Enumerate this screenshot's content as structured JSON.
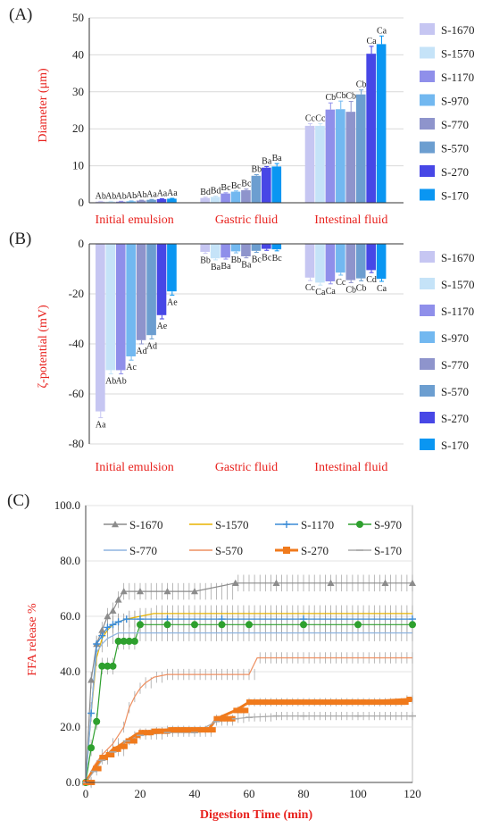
{
  "colors": {
    "S-1670": "#C6C6F2",
    "S-1570": "#C5E3F8",
    "S-1170": "#8F8FEA",
    "S-970": "#72B8F0",
    "S-770": "#8E94CC",
    "S-570": "#6C9ED0",
    "S-270": "#4747E6",
    "S-170": "#0A96F2",
    "axis_label": "#E8221E",
    "group_label": "#E8221E"
  },
  "chart_data": [
    {
      "type": "bar",
      "panel_label": "(A)",
      "ylabel": "Diameter (μm)",
      "ylim": [
        0,
        50
      ],
      "yticks": [
        "0",
        "10",
        "20",
        "30",
        "40",
        "50"
      ],
      "legend_position": "right",
      "groups": [
        "Initial emulsion",
        "Gastric fluid",
        "Intestinal fluid"
      ],
      "series": [
        {
          "name": "S-1670",
          "values": [
            0.3,
            1.3,
            20.8
          ],
          "errors": [
            0.1,
            0.2,
            0.6
          ],
          "labels": [
            "Ab",
            "Bd",
            "Cc"
          ]
        },
        {
          "name": "S-1570",
          "values": [
            0.3,
            1.6,
            20.8
          ],
          "errors": [
            0.1,
            0.2,
            0.6
          ],
          "labels": [
            "Ab",
            "Bd",
            "Cc"
          ]
        },
        {
          "name": "S-1170",
          "values": [
            0.3,
            2.5,
            25.2
          ],
          "errors": [
            0.1,
            0.2,
            1.8
          ],
          "labels": [
            "Ab",
            "Bc",
            "Cb"
          ]
        },
        {
          "name": "S-970",
          "values": [
            0.4,
            3.0,
            25.3
          ],
          "errors": [
            0.1,
            0.2,
            2.2
          ],
          "labels": [
            "Ab",
            "Bc",
            "Cb"
          ]
        },
        {
          "name": "S-770",
          "values": [
            0.6,
            3.4,
            24.6
          ],
          "errors": [
            0.1,
            0.3,
            2.8
          ],
          "labels": [
            "Ab",
            "Bc",
            "Cb"
          ]
        },
        {
          "name": "S-570",
          "values": [
            0.8,
            7.3,
            29.3
          ],
          "errors": [
            0.1,
            0.3,
            1.2
          ],
          "labels": [
            "Aa",
            "Bb",
            "Cb"
          ]
        },
        {
          "name": "S-270",
          "values": [
            1.0,
            9.5,
            40.3
          ],
          "errors": [
            0.1,
            0.3,
            2.0
          ],
          "labels": [
            "Aa",
            "Ba",
            "Ca"
          ]
        },
        {
          "name": "S-170",
          "values": [
            1.1,
            9.8,
            42.9
          ],
          "errors": [
            0.1,
            0.8,
            2.2
          ],
          "labels": [
            "Aa",
            "Ba",
            "Ca"
          ]
        }
      ]
    },
    {
      "type": "bar",
      "panel_label": "(B)",
      "ylabel": "ζ-potential (mV)",
      "ylim": [
        -80,
        0
      ],
      "yticks": [
        "0",
        "-20",
        "-40",
        "-60",
        "-80"
      ],
      "legend_position": "right",
      "groups": [
        "Initial emulsion",
        "Gastric fluid",
        "Intestinal fluid"
      ],
      "series": [
        {
          "name": "S-1670",
          "values": [
            -67,
            -3.2,
            -13.5
          ],
          "errors": [
            2.5,
            0.6,
            1.2
          ],
          "labels": [
            "Aa",
            "Bb",
            "Cc"
          ]
        },
        {
          "name": "S-1570",
          "values": [
            -50.5,
            -5.8,
            -15.5
          ],
          "errors": [
            1.5,
            0.6,
            1.0
          ],
          "labels": [
            "Ab",
            "Ba",
            "Ca"
          ]
        },
        {
          "name": "S-1170",
          "values": [
            -50.5,
            -5.5,
            -15.0
          ],
          "errors": [
            1.5,
            0.6,
            1.0
          ],
          "labels": [
            "Ab",
            "Ba",
            "Ca"
          ]
        },
        {
          "name": "S-970",
          "values": [
            -45,
            -3.0,
            -11.5
          ],
          "errors": [
            1.5,
            0.6,
            1.0
          ],
          "labels": [
            "Ac",
            "Bb",
            "Cc"
          ]
        },
        {
          "name": "S-770",
          "values": [
            -38.5,
            -5.0,
            -14.5
          ],
          "errors": [
            1.5,
            0.6,
            1.0
          ],
          "labels": [
            "Ad",
            "Ba",
            "Cb"
          ]
        },
        {
          "name": "S-570",
          "values": [
            -36.5,
            -2.8,
            -13.8
          ],
          "errors": [
            1.5,
            0.6,
            1.0
          ],
          "labels": [
            "Ad",
            "Bc",
            "Cb"
          ]
        },
        {
          "name": "S-270",
          "values": [
            -28.5,
            -2.0,
            -10.5
          ],
          "errors": [
            1.5,
            0.6,
            1.0
          ],
          "labels": [
            "Ae",
            "Bc",
            "Cd"
          ]
        },
        {
          "name": "S-170",
          "values": [
            -19,
            -2.2,
            -14.0
          ],
          "errors": [
            1.5,
            0.6,
            1.0
          ],
          "labels": [
            "Ae",
            "Bc",
            "Ca"
          ]
        }
      ]
    },
    {
      "type": "line",
      "panel_label": "(C)",
      "xlabel": "Digestion Time (min)",
      "ylabel": "FFA release %",
      "xlim": [
        0,
        120
      ],
      "ylim": [
        0,
        100
      ],
      "xticks": [
        "0",
        "20",
        "40",
        "60",
        "80",
        "100",
        "120"
      ],
      "yticks": [
        "0.0",
        "20.0",
        "40.0",
        "60.0",
        "80.0",
        "100.0"
      ],
      "legend_position": "top",
      "series": [
        {
          "name": "S-1670",
          "color": "#8C8C8C",
          "marker": "triangle",
          "x": [
            0,
            2,
            4,
            6,
            8,
            10,
            12,
            14,
            20,
            30,
            40,
            55,
            70,
            90,
            110,
            120
          ],
          "y": [
            0,
            37,
            50,
            55,
            60,
            62,
            66,
            69,
            69,
            69,
            69,
            72,
            72,
            72,
            72,
            72
          ],
          "err": 3
        },
        {
          "name": "S-1570",
          "color": "#E8B400",
          "marker": "none",
          "x": [
            0,
            2,
            4,
            6,
            8,
            10,
            12,
            15,
            20,
            25,
            30,
            50,
            80,
            120
          ],
          "y": [
            0,
            25,
            45,
            52,
            55,
            57,
            58,
            59,
            60,
            61,
            61,
            61,
            61,
            61
          ],
          "err": 3
        },
        {
          "name": "S-1170",
          "color": "#3C8CD6",
          "marker": "plus",
          "x": [
            0,
            2,
            4,
            6,
            8,
            10,
            12,
            15,
            20,
            30,
            50,
            80,
            120
          ],
          "y": [
            0,
            25,
            50,
            53,
            56,
            57,
            58,
            59,
            59,
            59,
            59,
            59,
            59
          ],
          "err": 3
        },
        {
          "name": "S-970",
          "color": "#2EA02E",
          "marker": "circle",
          "x": [
            0,
            2,
            4,
            6,
            8,
            10,
            12,
            14,
            16,
            18,
            20,
            30,
            40,
            50,
            60,
            80,
            100,
            120
          ],
          "y": [
            0,
            12.5,
            22,
            42,
            42,
            42,
            51,
            51,
            51,
            51,
            57,
            57,
            57,
            57,
            57,
            57,
            57,
            57
          ],
          "err": 3
        },
        {
          "name": "S-770",
          "color": "#8EB4E0",
          "marker": "none",
          "x": [
            0,
            2,
            4,
            6,
            8,
            10,
            12,
            15,
            20,
            30,
            50,
            80,
            120
          ],
          "y": [
            0,
            26,
            47,
            50,
            52,
            53,
            54,
            54,
            54,
            54,
            54,
            54,
            54
          ],
          "err": 3
        },
        {
          "name": "S-570",
          "color": "#EE8F60",
          "marker": "none",
          "x": [
            0,
            3,
            6,
            10,
            14,
            16,
            18,
            20,
            22,
            25,
            30,
            40,
            50,
            60,
            63,
            70,
            80,
            100,
            120
          ],
          "y": [
            0,
            6,
            10,
            14,
            20,
            27,
            31,
            34,
            36,
            38,
            39,
            39,
            39,
            39,
            45,
            45,
            45,
            45,
            45
          ],
          "err": 2
        },
        {
          "name": "S-270",
          "color": "#F07A1C",
          "marker": "square",
          "x": [
            0,
            3,
            6,
            8,
            10,
            12,
            15,
            18,
            20,
            25,
            30,
            40,
            45,
            48,
            55,
            60,
            80,
            100,
            118,
            120
          ],
          "y": [
            0,
            5,
            9,
            10,
            12,
            13,
            15,
            17,
            18,
            18.5,
            19,
            19,
            19,
            23,
            26,
            29,
            29,
            29,
            30,
            30
          ],
          "err": 1.5
        },
        {
          "name": "S-170",
          "color": "#A8A8A8",
          "marker": "dash",
          "x": [
            0,
            3,
            6,
            10,
            15,
            20,
            30,
            40,
            48,
            55,
            60,
            70,
            80,
            100,
            120
          ],
          "y": [
            0,
            4,
            8,
            11,
            15,
            17,
            18,
            18,
            22,
            23,
            23.5,
            24,
            24,
            24,
            24
          ],
          "err": 1.5
        }
      ]
    }
  ]
}
